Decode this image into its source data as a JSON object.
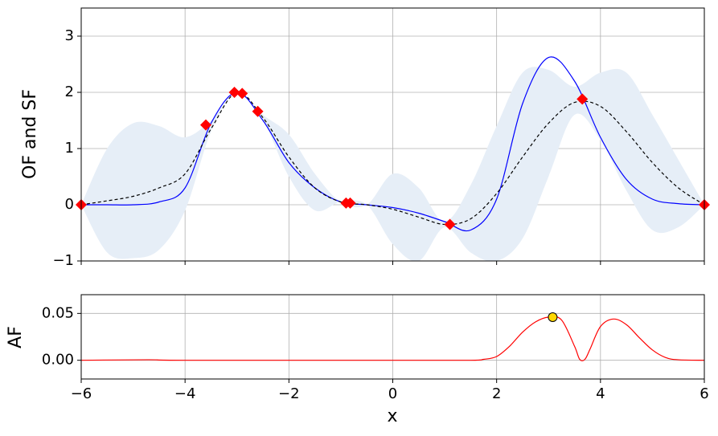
{
  "chart_data": [
    {
      "type": "line",
      "ylabel": "OF and SF",
      "x": [
        -6,
        -5.5,
        -5,
        -4.5,
        -4,
        -3.5,
        -3,
        -2.5,
        -2,
        -1.5,
        -1,
        -0.5,
        0,
        0.5,
        1,
        1.5,
        2,
        2.5,
        3,
        3.5,
        4,
        4.5,
        5,
        5.5,
        6
      ],
      "series": [
        {
          "color": "#0000ff",
          "dashed": false,
          "values": [
            0,
            0,
            0,
            0.05,
            0.3,
            1.45,
            2.0,
            1.5,
            0.75,
            0.3,
            0.05,
            0,
            -0.05,
            -0.15,
            -0.3,
            -0.45,
            0.1,
            1.8,
            2.62,
            2.2,
            1.2,
            0.45,
            0.1,
            0.02,
            0
          ]
        },
        {
          "color": "#000000",
          "dashed": true,
          "values": [
            0,
            0.07,
            0.15,
            0.3,
            0.55,
            1.35,
            2.0,
            1.55,
            0.85,
            0.3,
            0.05,
            0,
            -0.08,
            -0.22,
            -0.35,
            -0.25,
            0.2,
            0.85,
            1.45,
            1.82,
            1.75,
            1.3,
            0.75,
            0.3,
            0
          ]
        }
      ],
      "band": {
        "color": "#e6eef7",
        "upper": [
          0,
          1.0,
          1.45,
          1.4,
          1.2,
          1.5,
          2.0,
          1.6,
          1.25,
          0.55,
          0.05,
          0.0,
          0.55,
          0.3,
          -0.3,
          0.35,
          1.4,
          2.35,
          2.4,
          2.1,
          2.35,
          2.35,
          1.6,
          0.8,
          0
        ],
        "lower": [
          0,
          -0.85,
          -0.95,
          -0.8,
          -0.1,
          1.3,
          2.0,
          1.5,
          0.5,
          -0.1,
          0.05,
          0.0,
          -0.7,
          -1.0,
          -0.4,
          -0.85,
          -1.0,
          -0.6,
          0.5,
          1.6,
          1.15,
          0.25,
          -0.45,
          -0.4,
          0
        ]
      },
      "points": {
        "color": "#ff0000",
        "x": [
          -6,
          -3.6,
          -3.05,
          -2.9,
          -2.6,
          -0.9,
          -0.82,
          1.1,
          3.65,
          6
        ],
        "y": [
          0,
          1.42,
          2.0,
          1.98,
          1.66,
          0.03,
          0.03,
          -0.35,
          1.88,
          0
        ]
      },
      "xlim": [
        -6,
        6
      ],
      "xticks": [
        -6,
        -4,
        -2,
        0,
        2,
        4,
        6
      ],
      "ylim": [
        -1,
        3.5
      ],
      "yticks": [
        {
          "value": -1,
          "label": "−1"
        },
        0,
        1,
        2,
        3
      ],
      "grid": true
    },
    {
      "type": "line",
      "xlabel": "x",
      "ylabel": "AF",
      "x": [
        -6,
        -4.7,
        -4,
        0,
        1.5,
        1.75,
        2,
        2.25,
        2.5,
        2.75,
        3,
        3.25,
        3.5,
        3.6,
        3.7,
        3.8,
        4,
        4.25,
        4.5,
        4.75,
        5,
        5.25,
        5.5,
        6
      ],
      "values": [
        0,
        0.0005,
        0,
        0,
        0,
        0.001,
        0.004,
        0.015,
        0.03,
        0.041,
        0.046,
        0.043,
        0.015,
        0.001,
        0.001,
        0.012,
        0.036,
        0.044,
        0.038,
        0.024,
        0.011,
        0.003,
        0.0005,
        0
      ],
      "color": "#ff0000",
      "point": {
        "x": 3.08,
        "y": 0.046,
        "color": "#ffd700"
      },
      "xlim": [
        -6,
        6
      ],
      "xticks": [
        {
          "value": -6,
          "label": "−6"
        },
        {
          "value": -4,
          "label": "−4"
        },
        {
          "value": -2,
          "label": "−2"
        },
        0,
        2,
        4,
        6
      ],
      "ylim": [
        -0.02,
        0.07
      ],
      "yticks": [
        {
          "value": 0,
          "label": "0.00"
        },
        {
          "value": 0.05,
          "label": "0.05"
        }
      ],
      "grid": true
    }
  ]
}
